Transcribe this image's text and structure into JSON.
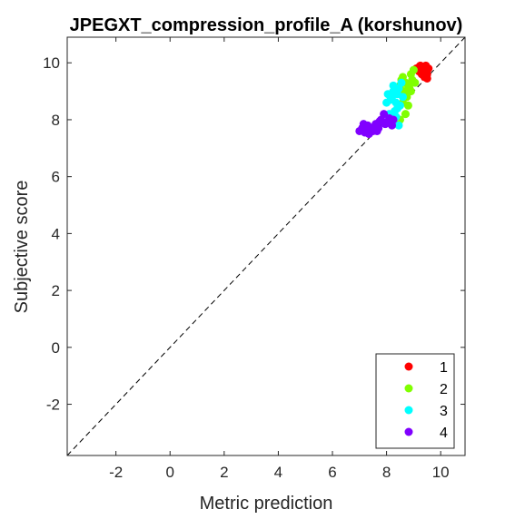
{
  "chart_data": {
    "type": "scatter",
    "title": "JPEGXT_compression_profile_A (korshunov)",
    "xlabel": "Metric prediction",
    "ylabel": "Subjective score",
    "xlim": [
      -3.8,
      10.9
    ],
    "ylim": [
      -3.8,
      10.9
    ],
    "x_ticks": [
      -2,
      0,
      2,
      4,
      6,
      8,
      10
    ],
    "y_ticks": [
      -2,
      0,
      2,
      4,
      6,
      8,
      10
    ],
    "grid": false,
    "legend_position": "bottom-right",
    "reference_line": {
      "style": "dashed",
      "color": "#000000",
      "from": [
        -3.8,
        -3.8
      ],
      "to": [
        10.9,
        10.9
      ]
    },
    "series": [
      {
        "name": "1",
        "color": "#ff0000",
        "points": [
          [
            9.1,
            9.8
          ],
          [
            9.2,
            9.85
          ],
          [
            9.3,
            9.8
          ],
          [
            9.35,
            9.75
          ],
          [
            9.4,
            9.85
          ],
          [
            9.45,
            9.9
          ],
          [
            9.5,
            9.6
          ],
          [
            9.4,
            9.5
          ],
          [
            9.3,
            9.6
          ],
          [
            9.2,
            9.7
          ],
          [
            9.55,
            9.8
          ],
          [
            9.25,
            9.9
          ],
          [
            9.15,
            9.75
          ],
          [
            9.5,
            9.45
          ],
          [
            9.35,
            9.65
          ]
        ]
      },
      {
        "name": "2",
        "color": "#80ff00",
        "points": [
          [
            8.6,
            9.5
          ],
          [
            8.7,
            9.3
          ],
          [
            8.8,
            9.2
          ],
          [
            8.9,
            9.6
          ],
          [
            9.0,
            9.75
          ],
          [
            8.65,
            9.0
          ],
          [
            8.75,
            8.8
          ],
          [
            8.85,
            9.1
          ],
          [
            8.95,
            9.4
          ],
          [
            8.5,
            9.2
          ],
          [
            8.6,
            8.6
          ],
          [
            8.8,
            8.5
          ],
          [
            8.9,
            9.0
          ],
          [
            9.05,
            9.3
          ],
          [
            8.55,
            9.4
          ],
          [
            8.7,
            8.2
          ],
          [
            8.5,
            8.0
          ]
        ]
      },
      {
        "name": "3",
        "color": "#00ffff",
        "points": [
          [
            8.05,
            8.9
          ],
          [
            8.15,
            8.7
          ],
          [
            8.25,
            9.0
          ],
          [
            8.35,
            8.6
          ],
          [
            8.45,
            9.1
          ],
          [
            8.5,
            8.5
          ],
          [
            8.3,
            8.3
          ],
          [
            8.2,
            8.8
          ],
          [
            8.55,
            9.3
          ],
          [
            8.4,
            8.9
          ],
          [
            8.0,
            8.6
          ],
          [
            8.35,
            8.1
          ],
          [
            8.45,
            7.8
          ],
          [
            8.1,
            8.2
          ],
          [
            8.6,
            8.8
          ],
          [
            8.25,
            9.2
          ],
          [
            8.4,
            8.4
          ]
        ]
      },
      {
        "name": "4",
        "color": "#8000ff",
        "points": [
          [
            7.0,
            7.6
          ],
          [
            7.1,
            7.7
          ],
          [
            7.2,
            7.55
          ],
          [
            7.3,
            7.8
          ],
          [
            7.4,
            7.7
          ],
          [
            7.5,
            7.6
          ],
          [
            7.6,
            7.85
          ],
          [
            7.7,
            7.7
          ],
          [
            7.8,
            8.0
          ],
          [
            7.9,
            8.2
          ],
          [
            8.0,
            7.9
          ],
          [
            8.1,
            8.05
          ],
          [
            8.2,
            7.8
          ],
          [
            7.35,
            7.5
          ],
          [
            7.55,
            7.75
          ],
          [
            7.75,
            7.95
          ],
          [
            7.95,
            7.85
          ],
          [
            7.15,
            7.85
          ],
          [
            7.65,
            7.6
          ],
          [
            8.25,
            8.0
          ]
        ]
      }
    ]
  }
}
